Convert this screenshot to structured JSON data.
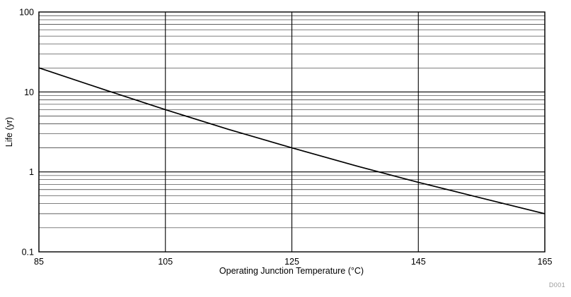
{
  "chart_data": {
    "type": "line",
    "title": "",
    "xlabel": "Operating Junction Temperature (°C)",
    "ylabel": "Life (yr)",
    "x": [
      85,
      95,
      105,
      115,
      125,
      135,
      145,
      155,
      165
    ],
    "series": [
      {
        "name": "Life",
        "color": "#000000",
        "values": [
          20,
          10.9,
          6.0,
          3.4,
          2.0,
          1.2,
          0.74,
          0.47,
          0.3
        ]
      }
    ],
    "xlim": [
      85,
      165
    ],
    "x_ticks": [
      85,
      105,
      125,
      145,
      165
    ],
    "y_scale": "log",
    "ylim": [
      0.1,
      100
    ],
    "y_ticks": [
      0.1,
      1,
      10,
      100
    ],
    "y_tick_labels": [
      "0.1",
      "1",
      "10",
      "100"
    ],
    "grid": "log minor horizontal lines + major horizontal and vertical lines",
    "legend": "none",
    "watermark": "D001",
    "background": "#ffffff",
    "line_color": "#000000"
  }
}
